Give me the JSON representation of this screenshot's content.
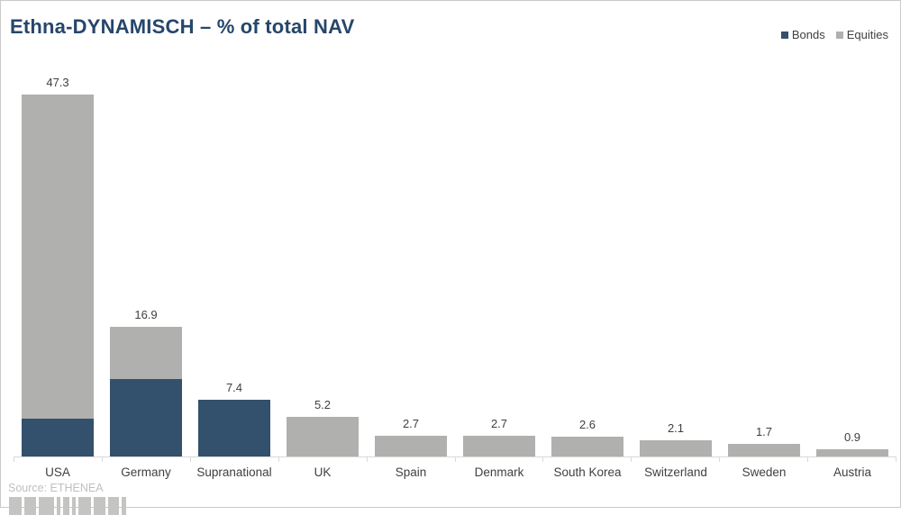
{
  "header": {
    "title": "Ethna-DYNAMISCH – % of total NAV"
  },
  "legend": {
    "items": [
      {
        "label": "Bonds",
        "color": "#33506C"
      },
      {
        "label": "Equities",
        "color": "#B0B0AE"
      }
    ]
  },
  "chart_data": {
    "type": "bar",
    "stacked": true,
    "title": "Ethna-DYNAMISCH – % of total NAV",
    "categories": [
      "USA",
      "Germany",
      "Supranational",
      "UK",
      "Spain",
      "Denmark",
      "South Korea",
      "Switzerland",
      "Sweden",
      "Austria"
    ],
    "series": [
      {
        "name": "Bonds",
        "color": "#33506C",
        "values": [
          5.0,
          10.1,
          7.4,
          0,
          0,
          0,
          0,
          0,
          0,
          0
        ]
      },
      {
        "name": "Equities",
        "color": "#B0B0AE",
        "values": [
          42.3,
          6.8,
          0,
          5.2,
          2.7,
          2.7,
          2.6,
          2.1,
          1.7,
          0.9
        ]
      }
    ],
    "totals_labels": [
      "47.3",
      "16.9",
      "7.4",
      "5.2",
      "2.7",
      "2.7",
      "2.6",
      "2.1",
      "1.7",
      "0.9"
    ],
    "xlabel": "",
    "ylabel": "% of total NAV",
    "ylim": [
      0,
      50
    ],
    "grid": false,
    "legend_position": "top-right",
    "value_labels": "above-bars"
  },
  "footer": {
    "source": "Source: ETHENEA"
  },
  "colors": {
    "title": "#26466B",
    "bonds": "#33506C",
    "equities": "#B0B0AE",
    "label_text": "#404040",
    "axis_line": "#D9D9D9",
    "source_text": "#BFBFBF"
  }
}
